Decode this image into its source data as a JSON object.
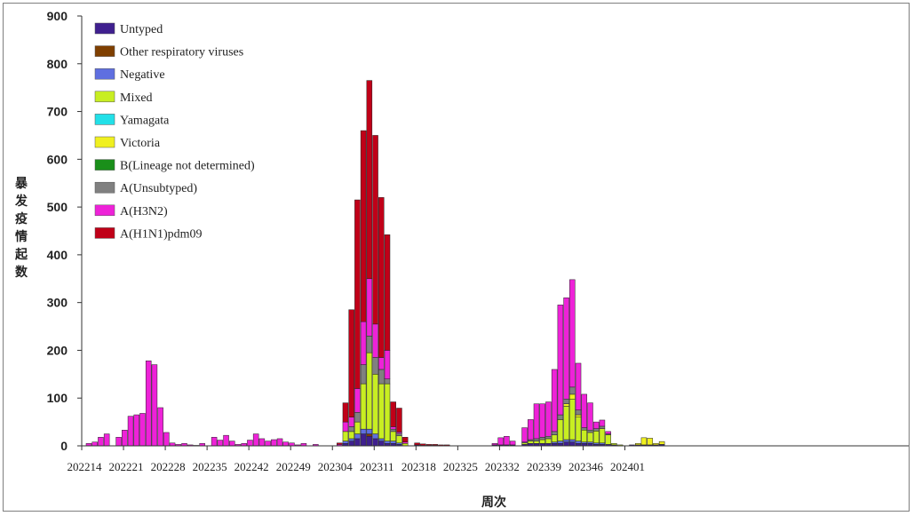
{
  "chart_data": {
    "type": "bar",
    "stacked": true,
    "xlabel": "周次",
    "ylabel": "暴发疫情起数",
    "ylim": [
      0,
      900
    ],
    "yticks": [
      0,
      100,
      200,
      300,
      400,
      500,
      600,
      700,
      800,
      900
    ],
    "xtick_labels": [
      "202214",
      "202221",
      "202228",
      "202235",
      "202242",
      "202249",
      "202304",
      "202311",
      "202318",
      "202325",
      "202332",
      "202339",
      "202346",
      "202401"
    ],
    "legend_position": "top-left",
    "grid": false,
    "legend": [
      {
        "name": "Untyped",
        "color": "#3f1f8f"
      },
      {
        "name": "Other respiratory viruses",
        "color": "#7f3f00"
      },
      {
        "name": "Negative",
        "color": "#5f6fe0"
      },
      {
        "name": "Mixed",
        "color": "#c8ee22"
      },
      {
        "name": "Yamagata",
        "color": "#22e0e8"
      },
      {
        "name": "Victoria",
        "color": "#f0f020"
      },
      {
        "name": "B(Lineage not determined)",
        "color": "#1a8f1a"
      },
      {
        "name": "A(Unsubtyped)",
        "color": "#808080"
      },
      {
        "name": "A(H3N2)",
        "color": "#ee22d8"
      },
      {
        "name": "A(H1N1)pdm09",
        "color": "#c00018"
      }
    ],
    "stack_order": [
      "Untyped",
      "Other respiratory viruses",
      "Negative",
      "Mixed",
      "Victoria",
      "Yamagata",
      "B(Lineage not determined)",
      "A(Unsubtyped)",
      "A(H3N2)",
      "A(H1N1)pdm09"
    ],
    "bars": [
      {
        "pos": 0,
        "h3": 5
      },
      {
        "pos": 1,
        "h3": 8
      },
      {
        "pos": 2,
        "h3": 18
      },
      {
        "pos": 3,
        "h3": 25
      },
      {
        "pos": 5,
        "h3": 18
      },
      {
        "pos": 6,
        "h3": 33
      },
      {
        "pos": 7,
        "h3": 62
      },
      {
        "pos": 8,
        "h3": 65
      },
      {
        "pos": 9,
        "h3": 68
      },
      {
        "pos": 10,
        "h3": 178
      },
      {
        "pos": 11,
        "h3": 170
      },
      {
        "pos": 12,
        "h3": 80
      },
      {
        "pos": 13,
        "h3": 28
      },
      {
        "pos": 14,
        "h3": 6
      },
      {
        "pos": 15,
        "h3": 3
      },
      {
        "pos": 16,
        "h3": 5
      },
      {
        "pos": 17,
        "h3": 2
      },
      {
        "pos": 18,
        "h3": 1
      },
      {
        "pos": 19,
        "h3": 5
      },
      {
        "pos": 21,
        "h3": 18
      },
      {
        "pos": 22,
        "h3": 12
      },
      {
        "pos": 23,
        "h3": 22
      },
      {
        "pos": 24,
        "h3": 10
      },
      {
        "pos": 25,
        "h3": 3
      },
      {
        "pos": 26,
        "h3": 5
      },
      {
        "pos": 27,
        "h3": 12
      },
      {
        "pos": 28,
        "h3": 25
      },
      {
        "pos": 29,
        "h3": 15
      },
      {
        "pos": 30,
        "h3": 10
      },
      {
        "pos": 31,
        "h3": 13
      },
      {
        "pos": 32,
        "h3": 15
      },
      {
        "pos": 33,
        "h3": 8
      },
      {
        "pos": 34,
        "h3": 6
      },
      {
        "pos": 35,
        "h3": 2
      },
      {
        "pos": 36,
        "h3": 5
      },
      {
        "pos": 38,
        "h3": 3
      },
      {
        "pos": 42,
        "h3": 3,
        "h1": 3
      },
      {
        "pos": 43,
        "untyped": 5,
        "neg": 5,
        "mixed": 20,
        "h3": 20,
        "h1": 40
      },
      {
        "pos": 44,
        "untyped": 10,
        "neg": 5,
        "mixed": 15,
        "unsub": 10,
        "h3": 20,
        "h1": 225
      },
      {
        "pos": 45,
        "untyped": 15,
        "neg": 10,
        "mixed": 25,
        "unsub": 20,
        "h3": 50,
        "h1": 395
      },
      {
        "pos": 46,
        "untyped": 25,
        "neg": 10,
        "mixed": 95,
        "unsub": 40,
        "h3": 90,
        "h1": 400
      },
      {
        "pos": 47,
        "untyped": 20,
        "other": 5,
        "neg": 10,
        "mixed": 160,
        "unsub": 35,
        "h3": 120,
        "h1": 415
      },
      {
        "pos": 48,
        "untyped": 15,
        "neg": 10,
        "mixed": 125,
        "unsub": 35,
        "h3": 70,
        "h1": 395
      },
      {
        "pos": 49,
        "untyped": 10,
        "neg": 5,
        "mixed": 115,
        "unsub": 30,
        "h3": 25,
        "h1": 335
      },
      {
        "pos": 50,
        "untyped": 5,
        "neg": 5,
        "mixed": 120,
        "unsub": 10,
        "h3": 60,
        "h1": 242
      },
      {
        "pos": 51,
        "untyped": 5,
        "neg": 5,
        "mixed": 20,
        "unsub": 5,
        "h3": 5,
        "h1": 52
      },
      {
        "pos": 52,
        "untyped": 3,
        "neg": 3,
        "mixed": 15,
        "unsub": 5,
        "h3": 3,
        "h1": 50
      },
      {
        "pos": 53,
        "mixed": 5,
        "h3": 3,
        "h1": 10
      },
      {
        "pos": 55,
        "untyped": 2,
        "h1": 4
      },
      {
        "pos": 56,
        "untyped": 1,
        "h1": 3
      },
      {
        "pos": 57,
        "untyped": 1,
        "h1": 2
      },
      {
        "pos": 58,
        "untyped": 1,
        "h1": 2
      },
      {
        "pos": 59,
        "untyped": 1,
        "h1": 1
      },
      {
        "pos": 60,
        "untyped": 1,
        "h1": 1
      },
      {
        "pos": 68,
        "untyped": 2,
        "h3": 3
      },
      {
        "pos": 69,
        "untyped": 2,
        "h3": 15
      },
      {
        "pos": 70,
        "untyped": 2,
        "h3": 18
      },
      {
        "pos": 71,
        "untyped": 2,
        "h3": 8
      },
      {
        "pos": 73,
        "untyped": 3,
        "mixed": 3,
        "unsub": 2,
        "h3": 30
      },
      {
        "pos": 74,
        "untyped": 5,
        "mixed": 5,
        "unsub": 3,
        "h3": 42
      },
      {
        "pos": 75,
        "untyped": 5,
        "mixed": 5,
        "unsub": 5,
        "h3": 73
      },
      {
        "pos": 76,
        "untyped": 5,
        "mixed": 8,
        "unsub": 5,
        "h3": 70
      },
      {
        "pos": 77,
        "untyped": 5,
        "mixed": 10,
        "unsub": 5,
        "h3": 72
      },
      {
        "pos": 78,
        "untyped": 5,
        "neg": 3,
        "mixed": 15,
        "unsub": 7,
        "h3": 130
      },
      {
        "pos": 79,
        "untyped": 5,
        "neg": 5,
        "mixed": 45,
        "unsub": 10,
        "h3": 230
      },
      {
        "pos": 80,
        "untyped": 8,
        "neg": 5,
        "mixed": 70,
        "victoria": 5,
        "unsub": 10,
        "h3": 212
      },
      {
        "pos": 81,
        "untyped": 8,
        "neg": 5,
        "mixed": 85,
        "victoria": 10,
        "unsub": 15,
        "h3": 225
      },
      {
        "pos": 82,
        "untyped": 5,
        "neg": 5,
        "mixed": 50,
        "victoria": 5,
        "unsub": 10,
        "h3": 98
      },
      {
        "pos": 83,
        "untyped": 5,
        "neg": 3,
        "mixed": 25,
        "unsub": 5,
        "h3": 70
      },
      {
        "pos": 84,
        "untyped": 5,
        "neg": 3,
        "mixed": 20,
        "unsub": 5,
        "h3": 57
      },
      {
        "pos": 85,
        "untyped": 3,
        "neg": 3,
        "mixed": 25,
        "unsub": 5,
        "h3": 14
      },
      {
        "pos": 86,
        "untyped": 3,
        "neg": 3,
        "mixed": 30,
        "unsub": 5,
        "h3": 13
      },
      {
        "pos": 87,
        "untyped": 3,
        "mixed": 20,
        "unsub": 2,
        "h3": 5
      },
      {
        "pos": 88,
        "untyped": 2,
        "mixed": 3
      },
      {
        "pos": 89,
        "untyped": 1,
        "mixed": 1
      },
      {
        "pos": 91,
        "untyped": 2
      },
      {
        "pos": 92,
        "untyped": 2,
        "victoria": 3
      },
      {
        "pos": 93,
        "untyped": 2,
        "victoria": 15
      },
      {
        "pos": 94,
        "untyped": 2,
        "victoria": 14
      },
      {
        "pos": 95,
        "untyped": 2,
        "victoria": 3
      },
      {
        "pos": 96,
        "untyped": 3,
        "victoria": 6
      }
    ]
  }
}
